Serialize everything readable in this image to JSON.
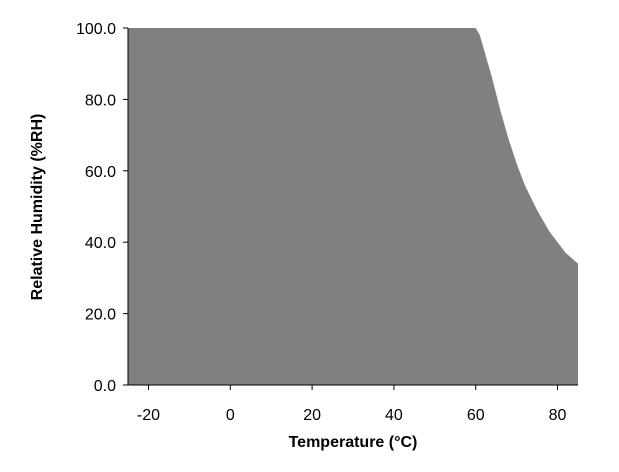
{
  "chart_data": {
    "type": "area",
    "title": "",
    "xlabel": "Temperature (°C)",
    "ylabel": "Relative Humidity (%RH)",
    "xlim": [
      -25,
      85
    ],
    "ylim": [
      0,
      100
    ],
    "x_ticks": [
      -20,
      0,
      20,
      40,
      60,
      80
    ],
    "x_tick_labels": [
      "-20",
      "0",
      "20",
      "40",
      "60",
      "80"
    ],
    "y_ticks": [
      0,
      20,
      40,
      60,
      80,
      100
    ],
    "y_tick_labels": [
      "0.0",
      "20.0",
      "40.0",
      "60.0",
      "80.0",
      "100.0"
    ],
    "grid": false,
    "legend": "none",
    "fill_color": "#808080",
    "series": [
      {
        "x": [
          -25,
          60,
          61,
          62,
          64,
          66,
          68,
          70,
          72,
          75,
          78,
          80,
          82,
          85
        ],
        "y": [
          100,
          100,
          98,
          94,
          86,
          77,
          69,
          62,
          56,
          49,
          43,
          40,
          37,
          34
        ]
      }
    ]
  }
}
